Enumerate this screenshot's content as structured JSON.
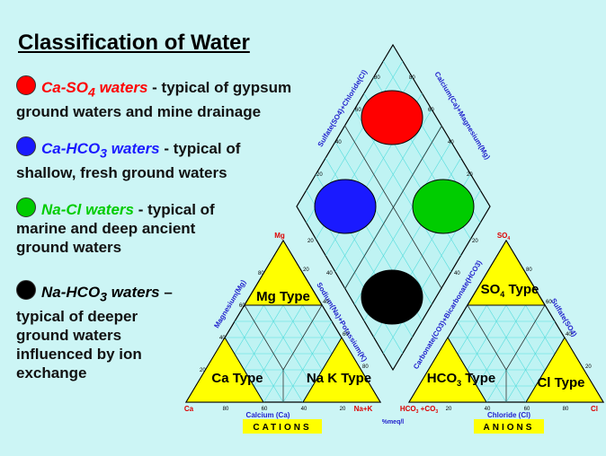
{
  "slide": {
    "title": "Classification of Water",
    "items": [
      {
        "name": "Ca-SO",
        "sub": "4",
        "suffix": " waters",
        "desc1": " - typical of gypsum",
        "desc2": "ground waters and mine drainage",
        "color": "#ff0000"
      },
      {
        "name": "Ca-HCO",
        "sub": "3",
        "suffix": " waters",
        "desc1": " - typical of",
        "desc2": "shallow, fresh ground waters",
        "color": "#1a1aff"
      },
      {
        "name": "Na-Cl waters",
        "desc1": " - typical of",
        "desc2": "marine and deep ancient",
        "desc3": "ground waters",
        "color": "#00cc00"
      },
      {
        "name": "Na-HCO",
        "sub": "3",
        "suffix": " waters",
        "desc1": " –",
        "desc2": "typical of deeper",
        "desc3": "ground waters",
        "desc4": "influenced by ion",
        "desc5": "exchange",
        "color": "#000000"
      }
    ]
  },
  "diagram": {
    "colors": {
      "grid": "#55dddd",
      "triangle_fill": "#ffff00",
      "axis_text": "#2222cc",
      "corner_text": "#dd0000",
      "diamond_fill": "#bff3f3"
    },
    "cations": {
      "types": [
        "Mg Type",
        "Ca Type",
        "Na K Type"
      ],
      "corners": {
        "mg": "Mg",
        "ca": "Ca",
        "nak": "Na+K"
      },
      "axis_left": "Magnesium(Mg)",
      "axis_right": "Sodium(Na)+Potassium(K)",
      "axis_bottom": "Calcium (Ca)",
      "footer": "CATIONS",
      "ticks": [
        "80",
        "60",
        "40",
        "20"
      ]
    },
    "anions": {
      "types": [
        "SO",
        "HCO",
        "Cl Type"
      ],
      "so_type_suffix": " Type",
      "hco_type_suffix": " Type",
      "so_sub": "4",
      "hco_sub": "3",
      "corners": {
        "so4": "SO",
        "so4_sub": "4",
        "co": "HCO",
        "co_rest": " +CO",
        "cl": "Cl"
      },
      "axis_left": "Carbonate(CO3)+Bicarbonate(HCO3)",
      "axis_right": "Sulfate(SO4)",
      "axis_bottom": "Chloride (Cl)",
      "footer": "ANIONS",
      "ticks": [
        "20",
        "40",
        "60",
        "80"
      ]
    },
    "diamond": {
      "axis_upper_left": "Sulfate(SO4)+Chloride(Cl)",
      "axis_upper_right": "Calcium(Ca)+Magnesium(Mg)",
      "ticks": [
        "20",
        "40",
        "60",
        "80"
      ]
    },
    "center_label": "%meq/l"
  }
}
